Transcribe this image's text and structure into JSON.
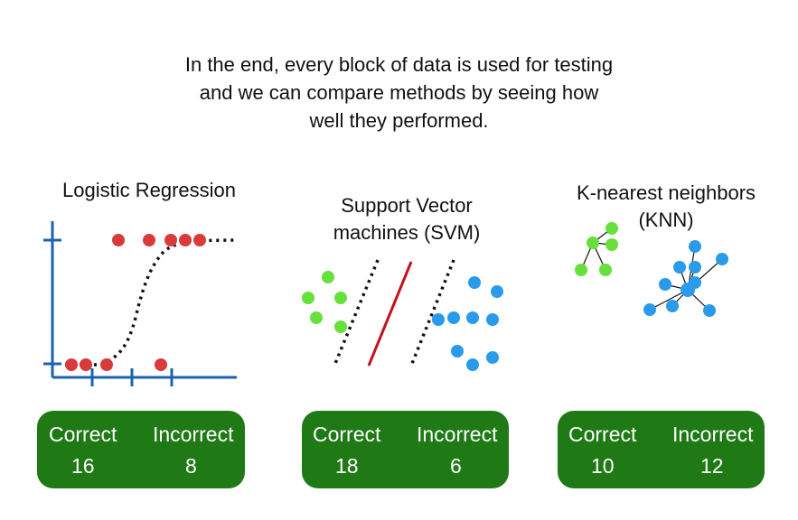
{
  "caption": {
    "line1": "In the end, every block of data is used for testing",
    "line2": "and we can compare methods by seeing how",
    "line3": "well they performed."
  },
  "methods": [
    {
      "name_line1": "Logistic Regression",
      "correct_label": "Correct",
      "correct_value": "16",
      "incorrect_label": "Incorrect",
      "incorrect_value": "8"
    },
    {
      "name_line1": "Support Vector",
      "name_line2": "machines (SVM)",
      "correct_label": "Correct",
      "correct_value": "18",
      "incorrect_label": "Incorrect",
      "incorrect_value": "6"
    },
    {
      "name_line1": "K-nearest neighbors",
      "name_line2": "(KNN)",
      "correct_label": "Correct",
      "correct_value": "10",
      "incorrect_label": "Incorrect",
      "incorrect_value": "12"
    }
  ],
  "colors": {
    "red_points": "#d93a3a",
    "green_points": "#66e03a",
    "blue_points": "#2a9bea",
    "axis_blue": "#1b63b0",
    "svm_line": "#c4121c",
    "box_green": "#1f7a16"
  }
}
